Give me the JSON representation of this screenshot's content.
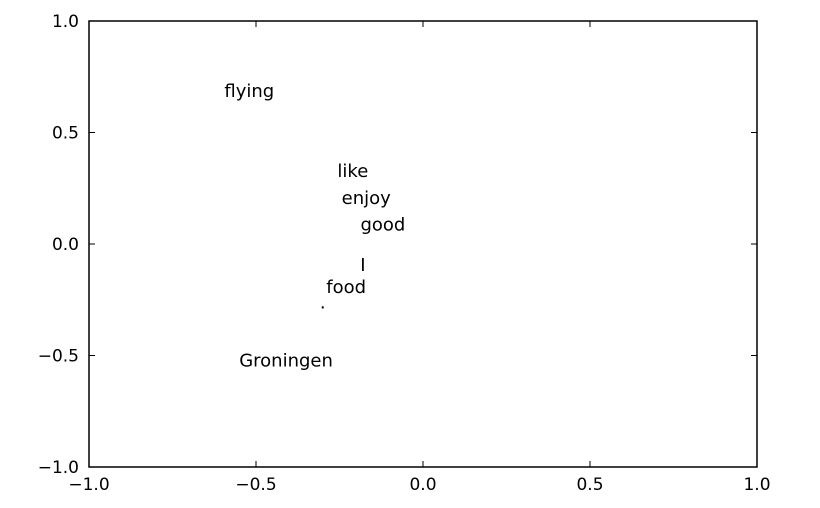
{
  "chart_data": {
    "type": "scatter",
    "title": "",
    "xlabel": "",
    "ylabel": "",
    "xlim": [
      -1.0,
      1.0
    ],
    "ylim": [
      -1.0,
      1.0
    ],
    "grid": false,
    "legend": "none",
    "xticks": [
      -1.0,
      -0.5,
      0.0,
      0.5,
      1.0
    ],
    "yticks": [
      -1.0,
      -0.5,
      0.0,
      0.5,
      1.0
    ],
    "xtick_labels": [
      "−1.0",
      "−0.5",
      "0.0",
      "0.5",
      "1.0"
    ],
    "ytick_labels": [
      "−1.0",
      "−0.5",
      "0.0",
      "0.5",
      "1.0"
    ],
    "points": [
      {
        "label": "flying",
        "x": -0.52,
        "y": 0.66
      },
      {
        "label": "like",
        "x": -0.21,
        "y": 0.3
      },
      {
        "label": "enjoy",
        "x": -0.17,
        "y": 0.18
      },
      {
        "label": "good",
        "x": -0.12,
        "y": 0.06
      },
      {
        "label": "I",
        "x": -0.18,
        "y": -0.12
      },
      {
        "label": "food",
        "x": -0.23,
        "y": -0.22
      },
      {
        "label": ".",
        "x": -0.3,
        "y": -0.29
      },
      {
        "label": "Groningen",
        "x": -0.41,
        "y": -0.55
      }
    ],
    "colors": {
      "axes": "#000000",
      "text": "#000000",
      "background": "#ffffff"
    }
  }
}
